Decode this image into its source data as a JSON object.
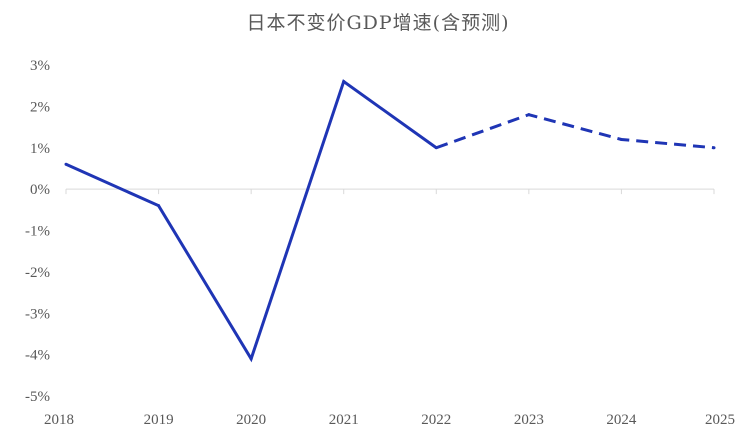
{
  "chart_data": {
    "type": "line",
    "title": "日本不变价GDP增速(含预测)",
    "categories": [
      "2018",
      "2019",
      "2020",
      "2021",
      "2022",
      "2023",
      "2024",
      "2025"
    ],
    "series": [
      {
        "values": [
          0.6,
          -0.4,
          -4.1,
          2.6,
          1.0,
          1.8,
          1.2,
          1.0
        ],
        "actual_through_index": 4,
        "forecast_from_index": 4
      }
    ],
    "ylim": [
      -5,
      3
    ],
    "yticks": [
      3,
      2,
      1,
      0,
      -1,
      -2,
      -3,
      -4,
      -5
    ],
    "ytick_labels": [
      "3%",
      "2%",
      "1%",
      "0%",
      "-1%",
      "-2%",
      "-3%",
      "-4%",
      "-5%"
    ],
    "xlabel": "",
    "ylabel": "",
    "grid": false,
    "line_color": "#1f35b5",
    "axis_color": "#d9d9d9"
  }
}
